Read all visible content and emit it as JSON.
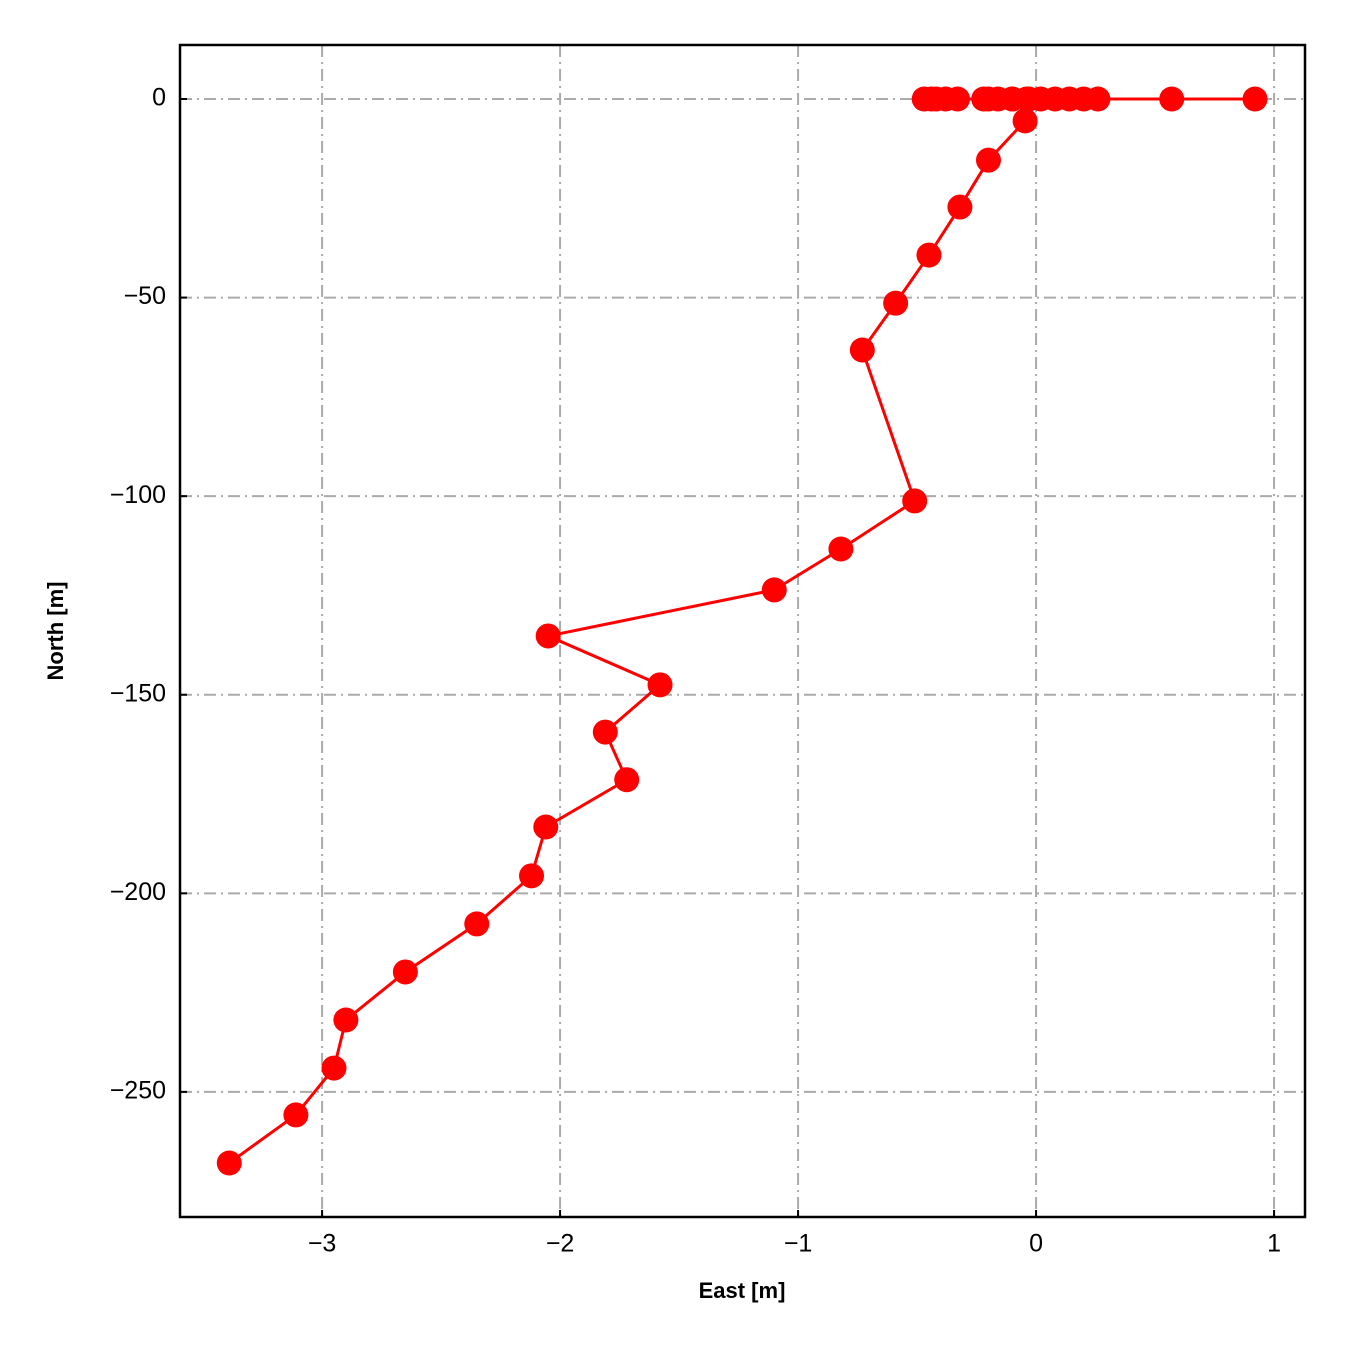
{
  "chart_data": {
    "type": "line",
    "xlabel": "East [m]",
    "ylabel": "North [m]",
    "x": [
      0.92,
      0.57,
      0.26,
      0.2,
      0.14,
      0.08,
      0.02,
      -0.04,
      -0.1,
      -0.16,
      -0.22,
      -0.33,
      -0.42,
      -0.47,
      -0.44,
      -0.38,
      -0.2,
      -0.1,
      -0.03,
      -0.046,
      -0.2,
      -0.32,
      -0.45,
      -0.59,
      -0.73,
      -0.51,
      -0.82,
      -1.1,
      -2.05,
      -1.58,
      -1.81,
      -1.72,
      -2.06,
      -2.12,
      -2.35,
      -2.65,
      -2.9,
      -2.95,
      -3.11,
      -3.39
    ],
    "values": [
      0,
      0,
      0,
      0,
      0,
      0,
      0,
      0,
      0,
      0,
      0,
      0,
      0,
      0,
      0,
      0,
      0,
      0,
      0,
      -5.5,
      -15.4,
      -27.2,
      -39.3,
      -51.4,
      -63.2,
      -101.2,
      -113.3,
      -123.6,
      -135.2,
      -147.5,
      -159.4,
      -171.4,
      -183.3,
      -195.6,
      -207.7,
      -219.8,
      -231.9,
      -244.0,
      -255.8,
      -267.9
    ],
    "color": "#ff0000",
    "xlim": [
      -3.597,
      1.13
    ],
    "ylim": [
      -281.5,
      13.6
    ],
    "xticks": [
      {
        "value": -3,
        "label": "−3"
      },
      {
        "value": -2,
        "label": "−2"
      },
      {
        "value": -1,
        "label": "−1"
      },
      0,
      1
    ],
    "yticks": [
      0,
      {
        "value": -50,
        "label": "−50"
      },
      {
        "value": -100,
        "label": "−100"
      },
      {
        "value": -150,
        "label": "−150"
      },
      {
        "value": -200,
        "label": "−200"
      },
      {
        "value": -250,
        "label": "−250"
      }
    ],
    "grid": true
  }
}
